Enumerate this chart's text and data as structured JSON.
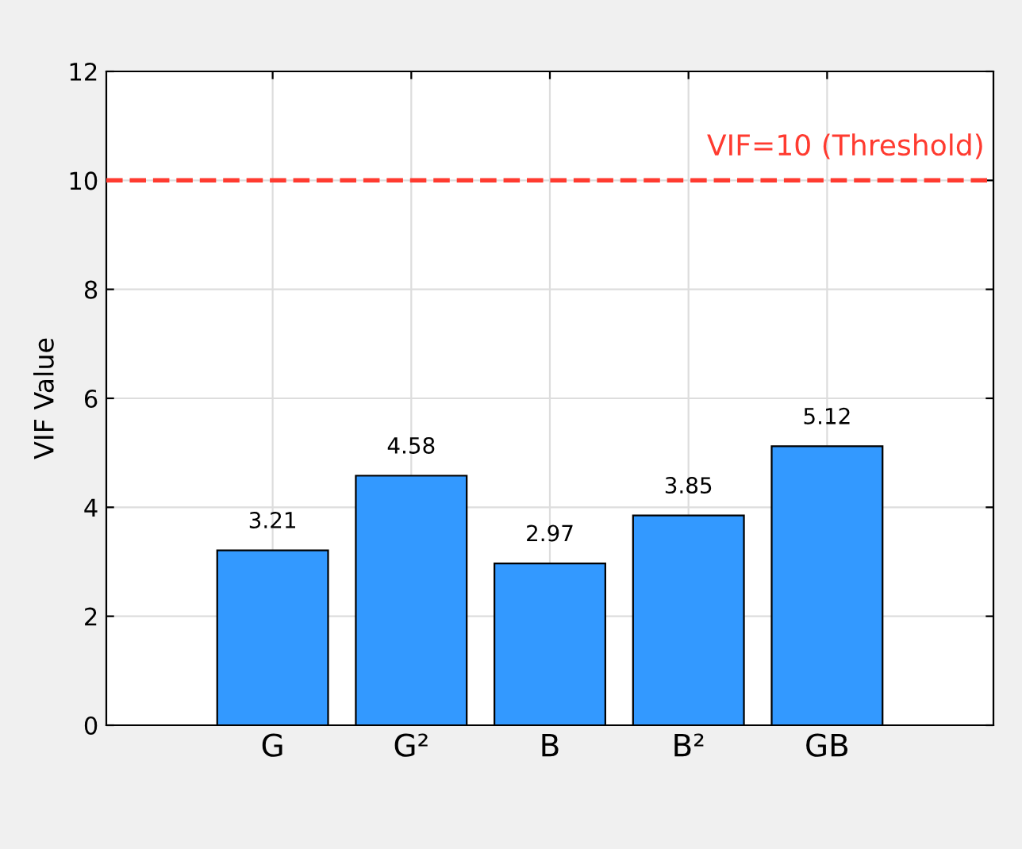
{
  "chart_data": {
    "type": "bar",
    "ylabel": "VIF Value",
    "categories": [
      "G",
      "G²",
      "B",
      "B²",
      "GB"
    ],
    "values": [
      3.21,
      4.58,
      2.97,
      3.85,
      5.12
    ],
    "color": "#3399ff",
    "ylim": [
      0,
      12
    ],
    "yticks": [
      0,
      2,
      4,
      6,
      8,
      10,
      12
    ],
    "grid": true,
    "data_labels": true,
    "ref_lines": [
      {
        "axis": "y",
        "value": 10,
        "label": "VIF=10 (Threshold)",
        "color": "#ff3b30",
        "line_style": "dashed"
      }
    ]
  }
}
